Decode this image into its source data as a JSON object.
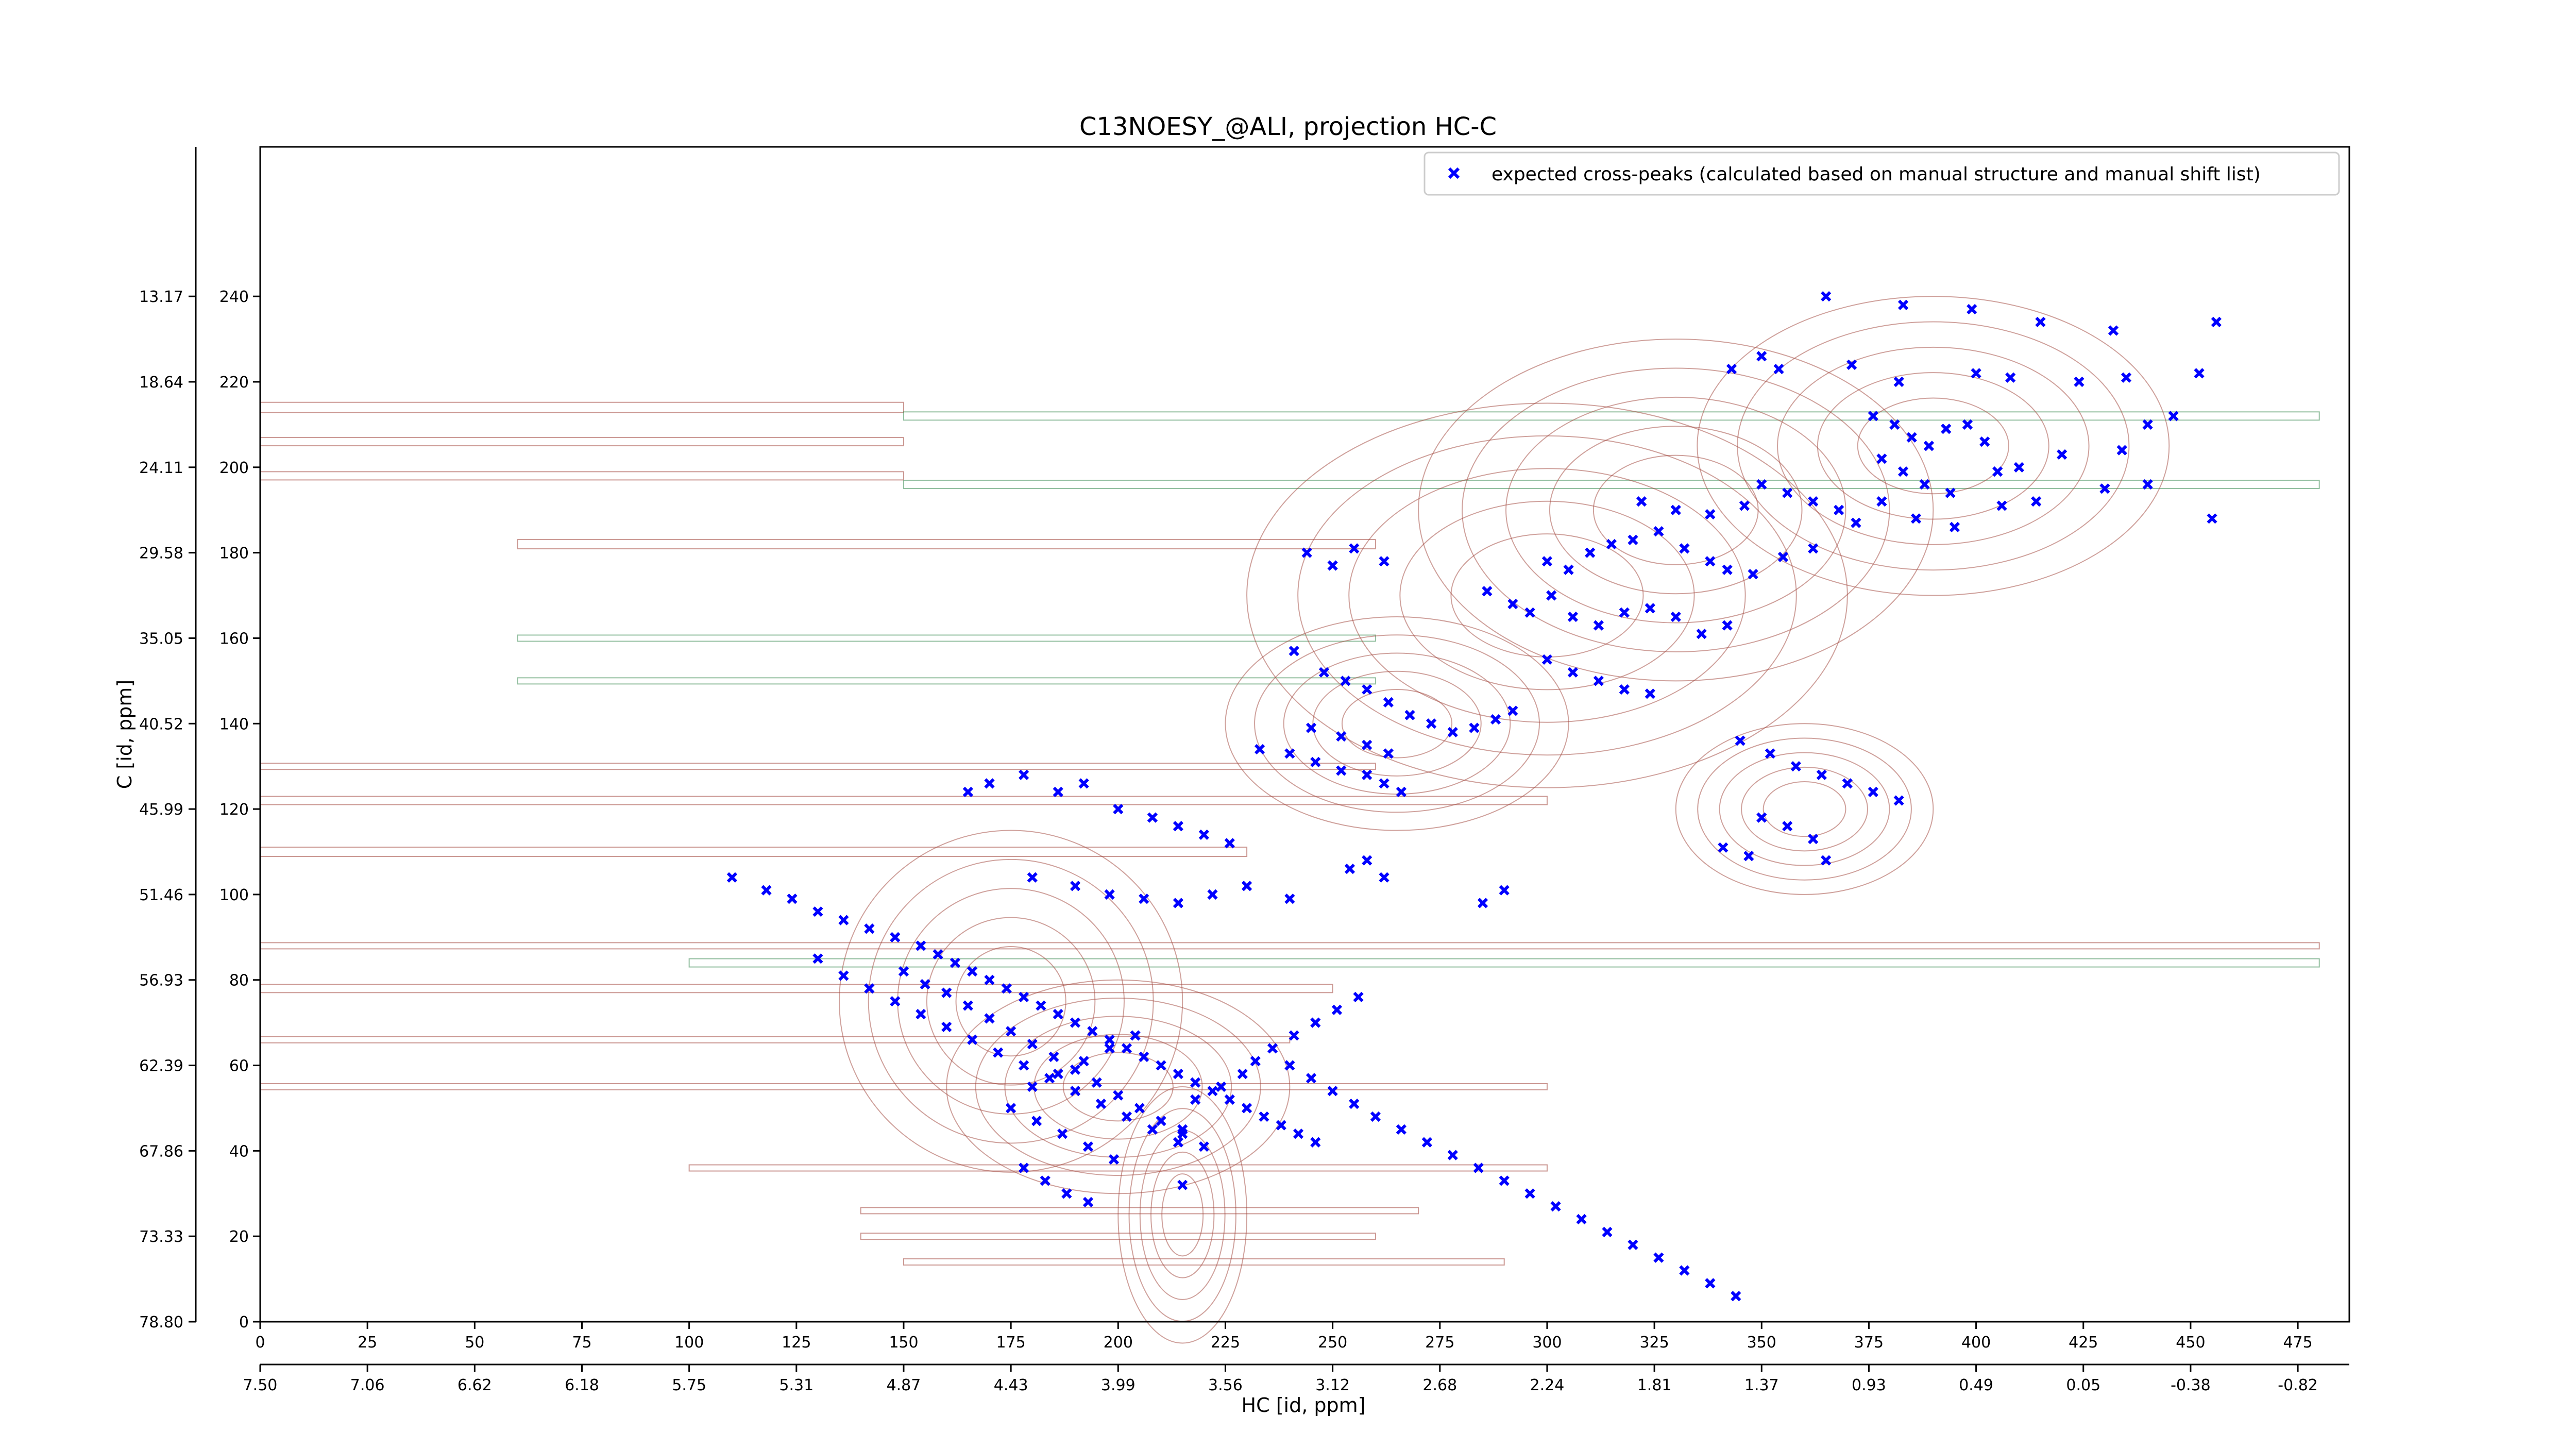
{
  "chart_data": {
    "type": "scatter",
    "title": "C13NOESY_@ALI, projection HC-C",
    "xlabel": "HC [id, ppm]",
    "ylabel": "C [id, ppm]",
    "xlim": [
      0,
      487
    ],
    "ylim": [
      0,
      275
    ],
    "x_ticks": [
      0,
      25,
      50,
      75,
      100,
      125,
      150,
      175,
      200,
      225,
      250,
      275,
      300,
      325,
      350,
      375,
      400,
      425,
      450,
      475
    ],
    "x_ticks_ppm": [
      "7.50",
      "7.06",
      "6.62",
      "6.18",
      "5.75",
      "5.31",
      "4.87",
      "4.43",
      "3.99",
      "3.56",
      "3.12",
      "2.68",
      "2.24",
      "1.81",
      "1.37",
      "0.93",
      "0.49",
      "0.05",
      "-0.38",
      "-0.82"
    ],
    "y_ticks": [
      0,
      20,
      40,
      60,
      80,
      100,
      120,
      140,
      160,
      180,
      200,
      220,
      240
    ],
    "y_ticks_ppm": [
      "78.80",
      "73.33",
      "67.86",
      "62.39",
      "56.93",
      "51.46",
      "45.99",
      "40.52",
      "35.05",
      "29.58",
      "24.11",
      "18.64",
      "13.17"
    ],
    "legend_position": "top-right",
    "grid": false,
    "colors": {
      "marker": "#0000ff",
      "positive_contour": "#a0443a",
      "negative_contour": "#3a8a52"
    },
    "series": [
      {
        "name": "expected cross-peaks (calculated based on manual structure and manual shift list)",
        "marker": "x",
        "points": [
          [
            365,
            240
          ],
          [
            383,
            238
          ],
          [
            399,
            237
          ],
          [
            415,
            234
          ],
          [
            432,
            232
          ],
          [
            456,
            234
          ],
          [
            350,
            226
          ],
          [
            343,
            223
          ],
          [
            354,
            223
          ],
          [
            371,
            224
          ],
          [
            382,
            220
          ],
          [
            400,
            222
          ],
          [
            408,
            221
          ],
          [
            424,
            220
          ],
          [
            435,
            221
          ],
          [
            452,
            222
          ],
          [
            376,
            212
          ],
          [
            381,
            210
          ],
          [
            385,
            207
          ],
          [
            389,
            205
          ],
          [
            393,
            209
          ],
          [
            398,
            210
          ],
          [
            402,
            206
          ],
          [
            378,
            202
          ],
          [
            383,
            199
          ],
          [
            388,
            196
          ],
          [
            394,
            194
          ],
          [
            405,
            199
          ],
          [
            410,
            200
          ],
          [
            420,
            203
          ],
          [
            440,
            210
          ],
          [
            446,
            212
          ],
          [
            434,
            204
          ],
          [
            322,
            192
          ],
          [
            330,
            190
          ],
          [
            338,
            189
          ],
          [
            346,
            191
          ],
          [
            350,
            196
          ],
          [
            356,
            194
          ],
          [
            362,
            192
          ],
          [
            368,
            190
          ],
          [
            372,
            187
          ],
          [
            378,
            192
          ],
          [
            386,
            188
          ],
          [
            395,
            186
          ],
          [
            406,
            191
          ],
          [
            414,
            192
          ],
          [
            430,
            195
          ],
          [
            440,
            196
          ],
          [
            455,
            188
          ],
          [
            300,
            178
          ],
          [
            305,
            176
          ],
          [
            310,
            180
          ],
          [
            315,
            182
          ],
          [
            320,
            183
          ],
          [
            326,
            185
          ],
          [
            332,
            181
          ],
          [
            338,
            178
          ],
          [
            342,
            176
          ],
          [
            348,
            175
          ],
          [
            355,
            179
          ],
          [
            362,
            181
          ],
          [
            244,
            180
          ],
          [
            250,
            177
          ],
          [
            255,
            181
          ],
          [
            262,
            178
          ],
          [
            286,
            171
          ],
          [
            292,
            168
          ],
          [
            296,
            166
          ],
          [
            301,
            170
          ],
          [
            306,
            165
          ],
          [
            312,
            163
          ],
          [
            318,
            166
          ],
          [
            324,
            167
          ],
          [
            330,
            165
          ],
          [
            336,
            161
          ],
          [
            342,
            163
          ],
          [
            300,
            155
          ],
          [
            306,
            152
          ],
          [
            312,
            150
          ],
          [
            318,
            148
          ],
          [
            324,
            147
          ],
          [
            241,
            157
          ],
          [
            248,
            152
          ],
          [
            253,
            150
          ],
          [
            258,
            148
          ],
          [
            263,
            145
          ],
          [
            268,
            142
          ],
          [
            273,
            140
          ],
          [
            278,
            138
          ],
          [
            283,
            139
          ],
          [
            288,
            141
          ],
          [
            292,
            143
          ],
          [
            245,
            139
          ],
          [
            252,
            137
          ],
          [
            258,
            135
          ],
          [
            263,
            133
          ],
          [
            233,
            134
          ],
          [
            240,
            133
          ],
          [
            246,
            131
          ],
          [
            252,
            129
          ],
          [
            258,
            128
          ],
          [
            262,
            126
          ],
          [
            266,
            124
          ],
          [
            345,
            136
          ],
          [
            352,
            133
          ],
          [
            358,
            130
          ],
          [
            364,
            128
          ],
          [
            370,
            126
          ],
          [
            376,
            124
          ],
          [
            382,
            122
          ],
          [
            350,
            118
          ],
          [
            356,
            116
          ],
          [
            362,
            113
          ],
          [
            341,
            111
          ],
          [
            347,
            109
          ],
          [
            365,
            108
          ],
          [
            200,
            120
          ],
          [
            208,
            118
          ],
          [
            214,
            116
          ],
          [
            220,
            114
          ],
          [
            226,
            112
          ],
          [
            186,
            124
          ],
          [
            192,
            126
          ],
          [
            178,
            128
          ],
          [
            170,
            126
          ],
          [
            165,
            124
          ],
          [
            254,
            106
          ],
          [
            258,
            108
          ],
          [
            262,
            104
          ],
          [
            290,
            101
          ],
          [
            285,
            98
          ],
          [
            180,
            104
          ],
          [
            190,
            102
          ],
          [
            198,
            100
          ],
          [
            206,
            99
          ],
          [
            214,
            98
          ],
          [
            222,
            100
          ],
          [
            230,
            102
          ],
          [
            240,
            99
          ],
          [
            110,
            104
          ],
          [
            118,
            101
          ],
          [
            124,
            99
          ],
          [
            130,
            96
          ],
          [
            136,
            94
          ],
          [
            142,
            92
          ],
          [
            148,
            90
          ],
          [
            154,
            88
          ],
          [
            158,
            86
          ],
          [
            162,
            84
          ],
          [
            166,
            82
          ],
          [
            170,
            80
          ],
          [
            174,
            78
          ],
          [
            178,
            76
          ],
          [
            182,
            74
          ],
          [
            186,
            72
          ],
          [
            190,
            70
          ],
          [
            194,
            68
          ],
          [
            198,
            66
          ],
          [
            202,
            64
          ],
          [
            206,
            62
          ],
          [
            210,
            60
          ],
          [
            214,
            58
          ],
          [
            218,
            56
          ],
          [
            222,
            54
          ],
          [
            226,
            52
          ],
          [
            230,
            50
          ],
          [
            234,
            48
          ],
          [
            238,
            46
          ],
          [
            242,
            44
          ],
          [
            246,
            42
          ],
          [
            150,
            82
          ],
          [
            155,
            79
          ],
          [
            160,
            77
          ],
          [
            165,
            74
          ],
          [
            170,
            71
          ],
          [
            175,
            68
          ],
          [
            180,
            65
          ],
          [
            185,
            62
          ],
          [
            190,
            59
          ],
          [
            195,
            56
          ],
          [
            200,
            53
          ],
          [
            205,
            50
          ],
          [
            210,
            47
          ],
          [
            215,
            44
          ],
          [
            220,
            41
          ],
          [
            130,
            85
          ],
          [
            136,
            81
          ],
          [
            142,
            78
          ],
          [
            148,
            75
          ],
          [
            154,
            72
          ],
          [
            160,
            69
          ],
          [
            166,
            66
          ],
          [
            172,
            63
          ],
          [
            178,
            60
          ],
          [
            184,
            57
          ],
          [
            190,
            54
          ],
          [
            196,
            51
          ],
          [
            202,
            48
          ],
          [
            208,
            45
          ],
          [
            214,
            42
          ],
          [
            180,
            55
          ],
          [
            186,
            58
          ],
          [
            192,
            61
          ],
          [
            198,
            64
          ],
          [
            204,
            67
          ],
          [
            175,
            50
          ],
          [
            181,
            47
          ],
          [
            187,
            44
          ],
          [
            193,
            41
          ],
          [
            199,
            38
          ],
          [
            178,
            36
          ],
          [
            183,
            33
          ],
          [
            188,
            30
          ],
          [
            193,
            28
          ],
          [
            215,
            32
          ],
          [
            215,
            45
          ],
          [
            218,
            52
          ],
          [
            224,
            55
          ],
          [
            229,
            58
          ],
          [
            232,
            61
          ],
          [
            236,
            64
          ],
          [
            241,
            67
          ],
          [
            246,
            70
          ],
          [
            251,
            73
          ],
          [
            256,
            76
          ],
          [
            240,
            60
          ],
          [
            245,
            57
          ],
          [
            250,
            54
          ],
          [
            255,
            51
          ],
          [
            260,
            48
          ],
          [
            266,
            45
          ],
          [
            272,
            42
          ],
          [
            278,
            39
          ],
          [
            284,
            36
          ],
          [
            290,
            33
          ],
          [
            296,
            30
          ],
          [
            302,
            27
          ],
          [
            308,
            24
          ],
          [
            314,
            21
          ],
          [
            320,
            18
          ],
          [
            326,
            15
          ],
          [
            332,
            12
          ],
          [
            338,
            9
          ],
          [
            344,
            6
          ]
        ]
      }
    ]
  }
}
